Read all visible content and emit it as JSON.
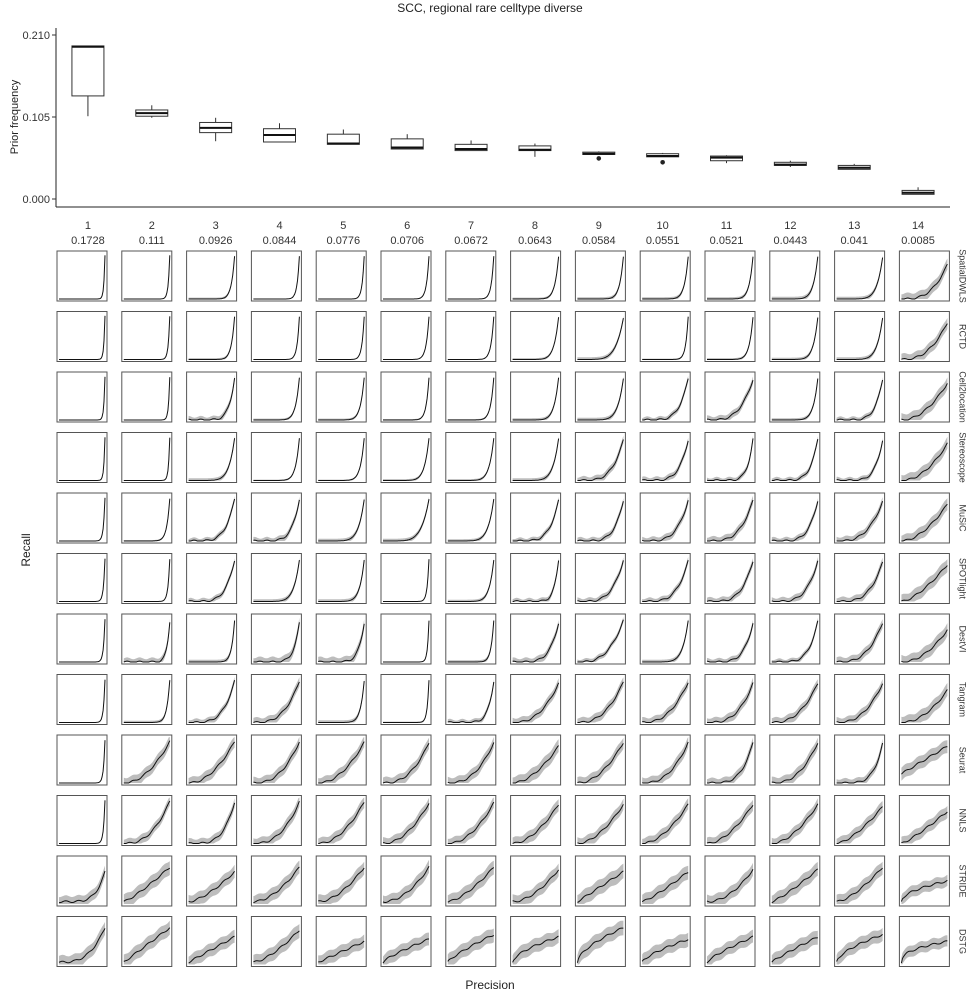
{
  "chart_data": [
    {
      "type": "box",
      "title": "SCC, regional rare celltype diverse",
      "ylabel": "Prior frequency",
      "xlabel": "",
      "ylim": [
        0,
        0.21
      ],
      "yticks": [
        "0.000",
        "0.105",
        "0.210"
      ],
      "categories": [
        "1",
        "2",
        "3",
        "4",
        "5",
        "6",
        "7",
        "8",
        "9",
        "10",
        "11",
        "12",
        "13",
        "14"
      ],
      "category_values": [
        "0.1728",
        "0.111",
        "0.0926",
        "0.0844",
        "0.0776",
        "0.0706",
        "0.0672",
        "0.0643",
        "0.0584",
        "0.0551",
        "0.0521",
        "0.0443",
        "0.041",
        "0.0085"
      ],
      "boxes": [
        {
          "min": 0.106,
          "q1": 0.132,
          "median": 0.195,
          "q3": 0.196,
          "max": 0.196,
          "outliers": []
        },
        {
          "min": 0.104,
          "q1": 0.106,
          "median": 0.11,
          "q3": 0.114,
          "max": 0.12,
          "outliers": []
        },
        {
          "min": 0.074,
          "q1": 0.085,
          "median": 0.091,
          "q3": 0.098,
          "max": 0.104,
          "outliers": []
        },
        {
          "min": 0.073,
          "q1": 0.073,
          "median": 0.082,
          "q3": 0.09,
          "max": 0.097,
          "outliers": []
        },
        {
          "min": 0.07,
          "q1": 0.07,
          "median": 0.071,
          "q3": 0.083,
          "max": 0.089,
          "outliers": []
        },
        {
          "min": 0.064,
          "q1": 0.064,
          "median": 0.066,
          "q3": 0.077,
          "max": 0.083,
          "outliers": []
        },
        {
          "min": 0.062,
          "q1": 0.062,
          "median": 0.064,
          "q3": 0.07,
          "max": 0.075,
          "outliers": []
        },
        {
          "min": 0.054,
          "q1": 0.062,
          "median": 0.063,
          "q3": 0.068,
          "max": 0.071,
          "outliers": []
        },
        {
          "min": 0.057,
          "q1": 0.057,
          "median": 0.058,
          "q3": 0.06,
          "max": 0.061,
          "outliers": [
            0.052
          ]
        },
        {
          "min": 0.054,
          "q1": 0.054,
          "median": 0.055,
          "q3": 0.058,
          "max": 0.059,
          "outliers": [
            0.047
          ]
        },
        {
          "min": 0.046,
          "q1": 0.049,
          "median": 0.053,
          "q3": 0.055,
          "max": 0.056,
          "outliers": []
        },
        {
          "min": 0.041,
          "q1": 0.043,
          "median": 0.044,
          "q3": 0.047,
          "max": 0.049,
          "outliers": []
        },
        {
          "min": 0.038,
          "q1": 0.038,
          "median": 0.04,
          "q3": 0.043,
          "max": 0.045,
          "outliers": []
        },
        {
          "min": 0.006,
          "q1": 0.006,
          "median": 0.008,
          "q3": 0.011,
          "max": 0.015,
          "outliers": []
        }
      ]
    },
    {
      "type": "line",
      "xlabel": "Precision",
      "ylabel": "Recall",
      "xlim": [
        0,
        1
      ],
      "ylim": [
        0,
        1
      ],
      "columns": [
        "1",
        "2",
        "3",
        "4",
        "5",
        "6",
        "7",
        "8",
        "9",
        "10",
        "11",
        "12",
        "13",
        "14"
      ],
      "methods": [
        "SpatialDWLS",
        "RCTD",
        "Cell2location",
        "Stereoscope",
        "MuSiC",
        "SPOTlight",
        "DestVI",
        "Tangram",
        "Seurat",
        "NNLS",
        "STRIDE",
        "DSTG"
      ],
      "curve_family": "recall = r0 + (r1 - r0) * (1 - p^e); shaded band = recall ± width",
      "params": {
        "r0": [
          [
            0.95,
            0.95,
            0.93,
            0.93,
            0.93,
            0.93,
            0.93,
            0.92,
            0.92,
            0.92,
            0.92,
            0.92,
            0.9,
            0.75
          ],
          [
            0.95,
            0.94,
            0.93,
            0.93,
            0.93,
            0.93,
            0.93,
            0.92,
            0.9,
            0.93,
            0.92,
            0.91,
            0.9,
            0.8
          ],
          [
            0.94,
            0.93,
            0.92,
            0.92,
            0.92,
            0.92,
            0.92,
            0.92,
            0.9,
            0.9,
            0.88,
            0.9,
            0.88,
            0.8
          ],
          [
            0.94,
            0.93,
            0.92,
            0.92,
            0.92,
            0.92,
            0.92,
            0.91,
            0.88,
            0.88,
            0.9,
            0.9,
            0.88,
            0.8
          ],
          [
            0.94,
            0.92,
            0.91,
            0.91,
            0.9,
            0.91,
            0.91,
            0.88,
            0.88,
            0.88,
            0.88,
            0.88,
            0.85,
            0.8
          ],
          [
            0.93,
            0.92,
            0.9,
            0.9,
            0.9,
            0.92,
            0.9,
            0.9,
            0.9,
            0.88,
            0.88,
            0.88,
            0.85,
            0.8
          ],
          [
            0.93,
            0.88,
            0.9,
            0.85,
            0.85,
            0.9,
            0.9,
            0.85,
            0.9,
            0.9,
            0.85,
            0.88,
            0.85,
            0.7
          ],
          [
            0.93,
            0.92,
            0.9,
            0.9,
            0.9,
            0.92,
            0.9,
            0.85,
            0.88,
            0.88,
            0.85,
            0.85,
            0.85,
            0.7
          ],
          [
            0.93,
            0.9,
            0.9,
            0.9,
            0.88,
            0.88,
            0.88,
            0.8,
            0.88,
            0.88,
            0.88,
            0.88,
            0.85,
            0.8
          ],
          [
            0.94,
            0.92,
            0.9,
            0.9,
            0.9,
            0.88,
            0.88,
            0.85,
            0.85,
            0.85,
            0.85,
            0.85,
            0.8,
            0.7
          ],
          [
            0.7,
            0.8,
            0.7,
            0.8,
            0.8,
            0.8,
            0.8,
            0.75,
            0.7,
            0.7,
            0.75,
            0.75,
            0.8,
            0.5
          ],
          [
            0.8,
            0.8,
            0.6,
            0.75,
            0.5,
            0.55,
            0.65,
            0.6,
            0.8,
            0.55,
            0.6,
            0.6,
            0.65,
            0.5
          ]
        ],
        "r1": [
          [
            0.0,
            0.0,
            0.0,
            0.0,
            0.0,
            0.0,
            0.0,
            0.0,
            0.0,
            0.0,
            0.0,
            0.0,
            0.0,
            0.0
          ],
          [
            0.0,
            0.0,
            0.0,
            0.0,
            0.0,
            0.0,
            0.0,
            0.0,
            0.0,
            0.0,
            0.0,
            0.0,
            0.0,
            0.0
          ],
          [
            0.0,
            0.0,
            0.0,
            0.0,
            0.0,
            0.0,
            0.0,
            0.0,
            0.0,
            0.0,
            0.0,
            0.0,
            0.0,
            0.0
          ],
          [
            0.0,
            0.0,
            0.0,
            0.0,
            0.0,
            0.0,
            0.0,
            0.0,
            0.0,
            0.0,
            0.0,
            0.0,
            0.0,
            0.0
          ],
          [
            0.0,
            0.0,
            0.0,
            0.0,
            0.0,
            0.0,
            0.0,
            0.0,
            0.0,
            0.0,
            0.0,
            0.0,
            0.0,
            0.0
          ],
          [
            0.0,
            0.0,
            0.0,
            0.0,
            0.0,
            0.0,
            0.0,
            0.0,
            0.0,
            0.0,
            0.0,
            0.0,
            0.0,
            0.0
          ],
          [
            0.0,
            0.0,
            0.0,
            0.0,
            0.0,
            0.0,
            0.0,
            0.0,
            0.0,
            0.0,
            0.0,
            0.0,
            0.0,
            0.0
          ],
          [
            0.0,
            0.0,
            0.0,
            0.0,
            0.0,
            0.0,
            0.0,
            0.0,
            0.0,
            0.0,
            0.0,
            0.0,
            0.0,
            0.0
          ],
          [
            0.0,
            0.0,
            0.0,
            0.0,
            0.0,
            0.0,
            0.0,
            0.0,
            0.0,
            0.0,
            0.0,
            0.0,
            0.0,
            0.2
          ],
          [
            0.0,
            0.0,
            0.0,
            0.0,
            0.0,
            0.0,
            0.0,
            0.0,
            0.0,
            0.0,
            0.0,
            0.0,
            0.0,
            0.0
          ],
          [
            0.05,
            0.05,
            0.05,
            0.05,
            0.05,
            0.05,
            0.05,
            0.05,
            0.05,
            0.05,
            0.05,
            0.05,
            0.05,
            0.05
          ],
          [
            0.05,
            0.05,
            0.05,
            0.05,
            0.05,
            0.05,
            0.05,
            0.05,
            0.05,
            0.05,
            0.05,
            0.05,
            0.05,
            0.05
          ]
        ],
        "e": [
          [
            40,
            30,
            14,
            20,
            22,
            18,
            18,
            12,
            12,
            12,
            12,
            10,
            8,
            3
          ],
          [
            40,
            30,
            14,
            20,
            20,
            16,
            16,
            10,
            6,
            18,
            12,
            10,
            8,
            2.5
          ],
          [
            40,
            35,
            8,
            12,
            12,
            16,
            14,
            10,
            8,
            5,
            3.5,
            10,
            6,
            2
          ],
          [
            40,
            35,
            8,
            12,
            12,
            10,
            10,
            8,
            4,
            5,
            8,
            6,
            6,
            2
          ],
          [
            30,
            15,
            5,
            6,
            8,
            6,
            8,
            5,
            5,
            4,
            3.5,
            5,
            3,
            1.8
          ],
          [
            30,
            25,
            5,
            8,
            10,
            25,
            10,
            10,
            4,
            4,
            4,
            4,
            3.5,
            1.5
          ],
          [
            30,
            15,
            15,
            8,
            8,
            30,
            16,
            5,
            3,
            8,
            5,
            5,
            3,
            2
          ],
          [
            30,
            15,
            4,
            3,
            12,
            25,
            8,
            2.5,
            2.5,
            2.5,
            3,
            2.5,
            2.5,
            2
          ],
          [
            30,
            2,
            2,
            2.5,
            2,
            2.5,
            2.5,
            1.8,
            2,
            2.5,
            4,
            2.5,
            5,
            1
          ],
          [
            30,
            2.5,
            4,
            2.5,
            2,
            2,
            2,
            1.8,
            1.8,
            1.8,
            1.8,
            1.8,
            1.5,
            1.2
          ],
          [
            5,
            1.2,
            1.5,
            1.8,
            1.8,
            2,
            1.5,
            1.8,
            1,
            1.2,
            2,
            1.2,
            1.5,
            0.5
          ],
          [
            3,
            1,
            1,
            1.5,
            1,
            0.8,
            0.8,
            0.6,
            0.6,
            0.7,
            0.8,
            0.9,
            0.6,
            0.4
          ]
        ],
        "width": [
          [
            0.0,
            0.01,
            0.03,
            0.01,
            0.01,
            0.01,
            0.01,
            0.03,
            0.04,
            0.04,
            0.04,
            0.05,
            0.05,
            0.12
          ],
          [
            0.0,
            0.01,
            0.03,
            0.01,
            0.01,
            0.01,
            0.01,
            0.03,
            0.05,
            0.02,
            0.03,
            0.04,
            0.05,
            0.12
          ],
          [
            0.0,
            0.01,
            0.07,
            0.03,
            0.03,
            0.02,
            0.02,
            0.04,
            0.05,
            0.06,
            0.08,
            0.04,
            0.06,
            0.13
          ],
          [
            0.0,
            0.01,
            0.05,
            0.02,
            0.02,
            0.03,
            0.03,
            0.05,
            0.08,
            0.07,
            0.06,
            0.06,
            0.06,
            0.13
          ],
          [
            0.0,
            0.02,
            0.06,
            0.07,
            0.05,
            0.05,
            0.04,
            0.06,
            0.07,
            0.08,
            0.09,
            0.07,
            0.09,
            0.13
          ],
          [
            0.0,
            0.01,
            0.06,
            0.05,
            0.05,
            0.01,
            0.04,
            0.06,
            0.07,
            0.07,
            0.08,
            0.08,
            0.09,
            0.14
          ],
          [
            0.0,
            0.08,
            0.05,
            0.1,
            0.1,
            0.01,
            0.04,
            0.08,
            0.06,
            0.05,
            0.07,
            0.06,
            0.1,
            0.14
          ],
          [
            0.0,
            0.04,
            0.07,
            0.1,
            0.05,
            0.02,
            0.06,
            0.1,
            0.1,
            0.1,
            0.1,
            0.1,
            0.1,
            0.14
          ],
          [
            0.0,
            0.12,
            0.12,
            0.12,
            0.12,
            0.12,
            0.12,
            0.14,
            0.12,
            0.12,
            0.1,
            0.12,
            0.09,
            0.14
          ],
          [
            0.0,
            0.1,
            0.1,
            0.12,
            0.12,
            0.12,
            0.12,
            0.13,
            0.12,
            0.12,
            0.12,
            0.12,
            0.12,
            0.13
          ],
          [
            0.12,
            0.15,
            0.14,
            0.14,
            0.14,
            0.14,
            0.15,
            0.14,
            0.16,
            0.15,
            0.14,
            0.15,
            0.14,
            0.12
          ],
          [
            0.14,
            0.15,
            0.14,
            0.15,
            0.14,
            0.14,
            0.15,
            0.15,
            0.16,
            0.15,
            0.14,
            0.15,
            0.14,
            0.12
          ]
        ]
      }
    }
  ]
}
